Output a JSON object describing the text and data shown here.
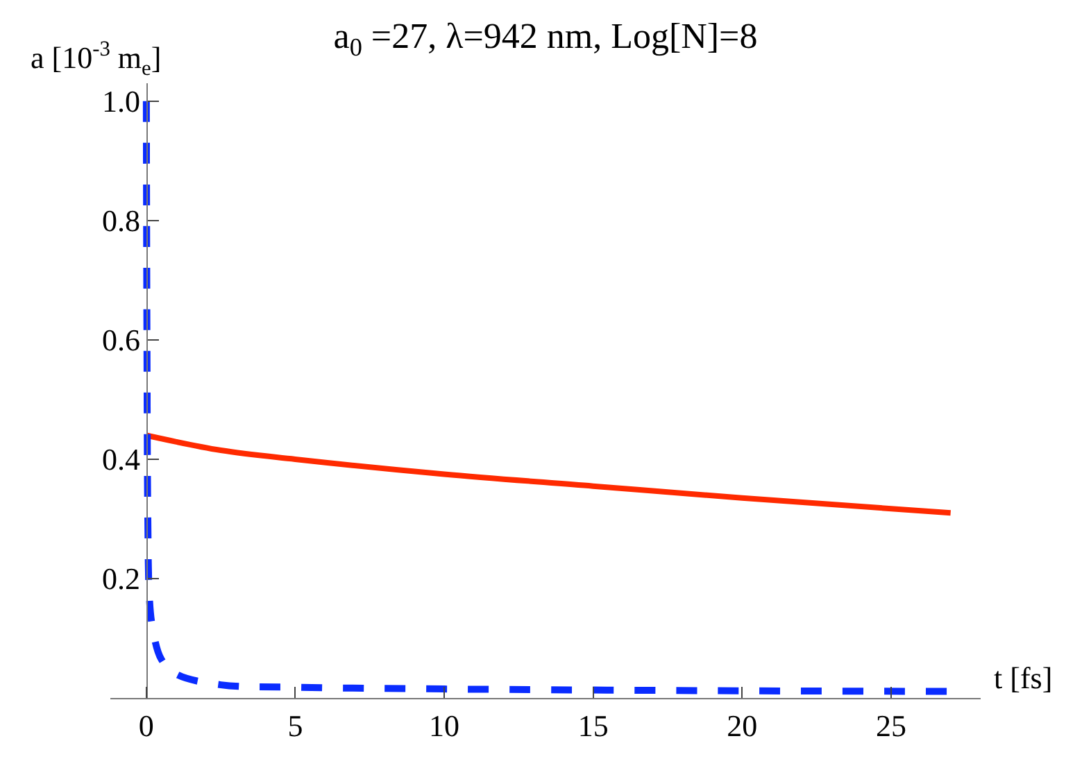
{
  "chart_data": {
    "type": "line",
    "title": "a$_{0}$ =27, λ=942 nm, Log[N]=8",
    "xlabel": "t [fs]",
    "ylabel": "a [10$^{-3}$ m$_{e}$]",
    "xlim": [
      -1.2,
      28
    ],
    "ylim": [
      0,
      1.03
    ],
    "xticks": [
      0,
      5,
      10,
      15,
      20,
      25
    ],
    "yticks": [
      0.2,
      0.4,
      0.6,
      0.8,
      {
        "value": 1,
        "label": "1.0"
      }
    ],
    "marker": "none",
    "series": [
      {
        "color": "#ff2a00",
        "line_style": "solid",
        "x": [
          0,
          2.5,
          5,
          10,
          15,
          20,
          27
        ],
        "values": [
          0.44,
          0.415,
          0.4,
          0.375,
          0.355,
          0.335,
          0.31
        ]
      },
      {
        "color": "#0a2cff",
        "line_style": "dashed",
        "x": [
          0,
          0.02,
          0.05,
          0.1,
          0.2,
          0.5,
          1,
          2.5,
          5,
          10,
          20,
          27
        ],
        "values": [
          1.0,
          0.6,
          0.3,
          0.17,
          0.12,
          0.065,
          0.04,
          0.022,
          0.018,
          0.015,
          0.012,
          0.011
        ]
      }
    ]
  }
}
